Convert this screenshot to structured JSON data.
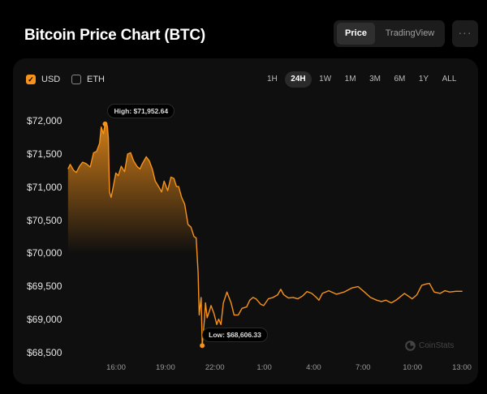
{
  "header": {
    "title": "Bitcoin Price Chart (BTC)"
  },
  "view_toggle": {
    "options": [
      "Price",
      "TradingView"
    ],
    "selected": "Price"
  },
  "more_button": {
    "label": "···"
  },
  "currencies": [
    {
      "label": "USD",
      "checked": true
    },
    {
      "label": "ETH",
      "checked": false
    }
  ],
  "ranges": {
    "options": [
      "1H",
      "24H",
      "1W",
      "1M",
      "3M",
      "6M",
      "1Y",
      "ALL"
    ],
    "selected": "24H"
  },
  "watermark": "CoinStats",
  "colors": {
    "accent": "#f7931a",
    "background": "#000000",
    "card": "#0f0f0f"
  },
  "chart_data": {
    "type": "area",
    "ylim": [
      68500,
      72000
    ],
    "y_ticks": [
      "$72,000",
      "$71,500",
      "$71,000",
      "$70,500",
      "$70,000",
      "$69,500",
      "$69,000",
      "$68,500"
    ],
    "x_ticks": [
      "16:00",
      "19:00",
      "22:00",
      "1:00",
      "4:00",
      "7:00",
      "10:00",
      "13:00"
    ],
    "high": {
      "label": "High: $71,952.64",
      "time": "15:20",
      "value": 71952.64
    },
    "low": {
      "label": "Low: $68,606.33",
      "time": "21:14",
      "value": 68606.33
    },
    "series": [
      [
        "13:05",
        71273
      ],
      [
        "13:13",
        71342
      ],
      [
        "13:25",
        71253
      ],
      [
        "13:35",
        71220
      ],
      [
        "13:47",
        71314
      ],
      [
        "13:58",
        71375
      ],
      [
        "14:10",
        71355
      ],
      [
        "14:26",
        71302
      ],
      [
        "14:38",
        71518
      ],
      [
        "14:49",
        71539
      ],
      [
        "15:00",
        71661
      ],
      [
        "15:06",
        71906
      ],
      [
        "15:14",
        71804
      ],
      [
        "15:20",
        71952.64
      ],
      [
        "15:28",
        71926
      ],
      [
        "15:32",
        71743
      ],
      [
        "15:36",
        70926
      ],
      [
        "15:42",
        70844
      ],
      [
        "15:47",
        70946
      ],
      [
        "15:59",
        71212
      ],
      [
        "16:08",
        71171
      ],
      [
        "16:19",
        71314
      ],
      [
        "16:31",
        71232
      ],
      [
        "16:42",
        71498
      ],
      [
        "16:53",
        71518
      ],
      [
        "17:04",
        71396
      ],
      [
        "17:16",
        71314
      ],
      [
        "17:27",
        71273
      ],
      [
        "17:36",
        71355
      ],
      [
        "17:50",
        71457
      ],
      [
        "18:01",
        71396
      ],
      [
        "18:12",
        71273
      ],
      [
        "18:23",
        71089
      ],
      [
        "18:35",
        71008
      ],
      [
        "18:46",
        70926
      ],
      [
        "18:55",
        71089
      ],
      [
        "19:08",
        70946
      ],
      [
        "19:20",
        71150
      ],
      [
        "19:31",
        71130
      ],
      [
        "19:40",
        71008
      ],
      [
        "19:48",
        71008
      ],
      [
        "19:59",
        70844
      ],
      [
        "20:10",
        70742
      ],
      [
        "20:22",
        70436
      ],
      [
        "20:33",
        70395
      ],
      [
        "20:44",
        70252
      ],
      [
        "20:52",
        70232
      ],
      [
        "20:59",
        69701
      ],
      [
        "21:03",
        69068
      ],
      [
        "21:10",
        69333
      ],
      [
        "21:14",
        68606.33
      ],
      [
        "21:22",
        69007
      ],
      [
        "21:26",
        69251
      ],
      [
        "21:32",
        69027
      ],
      [
        "21:40",
        69129
      ],
      [
        "21:46",
        69211
      ],
      [
        "21:57",
        69088
      ],
      [
        "22:07",
        68925
      ],
      [
        "22:14",
        69007
      ],
      [
        "22:22",
        68925
      ],
      [
        "22:31",
        69251
      ],
      [
        "22:44",
        69415
      ],
      [
        "22:59",
        69251
      ],
      [
        "23:10",
        69068
      ],
      [
        "23:25",
        69068
      ],
      [
        "23:39",
        69170
      ],
      [
        "23:56",
        69190
      ],
      [
        "00:07",
        69292
      ],
      [
        "00:19",
        69333
      ],
      [
        "00:30",
        69313
      ],
      [
        "00:47",
        69231
      ],
      [
        "00:58",
        69211
      ],
      [
        "01:15",
        69313
      ],
      [
        "01:32",
        69333
      ],
      [
        "01:49",
        69374
      ],
      [
        "02:00",
        69456
      ],
      [
        "02:11",
        69374
      ],
      [
        "02:28",
        69325
      ],
      [
        "02:45",
        69333
      ],
      [
        "03:02",
        69313
      ],
      [
        "03:19",
        69354
      ],
      [
        "03:36",
        69423
      ],
      [
        "03:53",
        69394
      ],
      [
        "04:10",
        69333
      ],
      [
        "04:19",
        69292
      ],
      [
        "04:32",
        69394
      ],
      [
        "04:55",
        69435
      ],
      [
        "05:23",
        69382
      ],
      [
        "05:51",
        69415
      ],
      [
        "06:19",
        69476
      ],
      [
        "06:42",
        69497
      ],
      [
        "07:05",
        69415
      ],
      [
        "07:27",
        69333
      ],
      [
        "07:50",
        69292
      ],
      [
        "08:07",
        69272
      ],
      [
        "08:23",
        69292
      ],
      [
        "08:43",
        69251
      ],
      [
        "09:03",
        69300
      ],
      [
        "09:31",
        69394
      ],
      [
        "09:59",
        69313
      ],
      [
        "10:16",
        69374
      ],
      [
        "10:34",
        69517
      ],
      [
        "10:50",
        69537
      ],
      [
        "11:02",
        69545
      ],
      [
        "11:19",
        69415
      ],
      [
        "11:41",
        69394
      ],
      [
        "11:58",
        69435
      ],
      [
        "12:16",
        69415
      ],
      [
        "12:38",
        69427
      ],
      [
        "13:02",
        69427
      ]
    ]
  }
}
